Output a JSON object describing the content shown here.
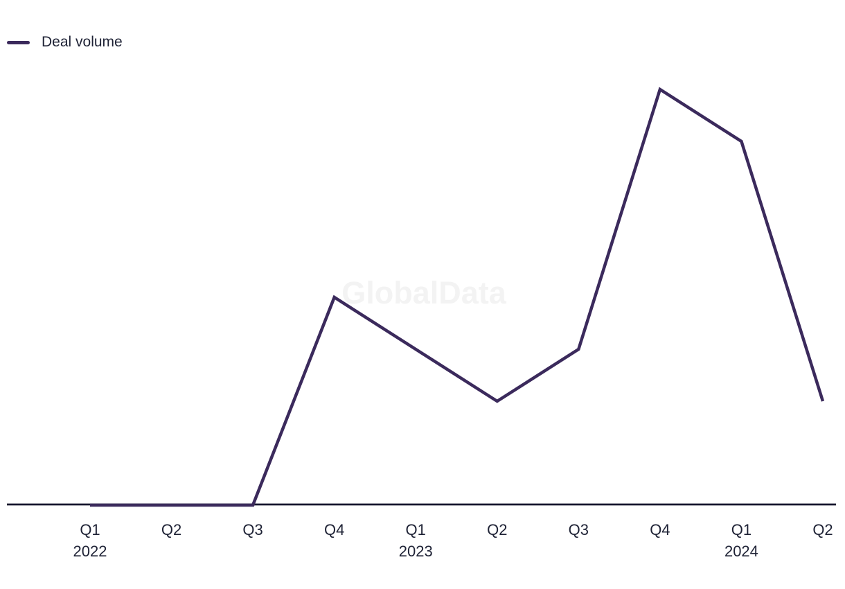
{
  "legend": {
    "label": "Deal volume"
  },
  "watermark": {
    "text": "GlobalData"
  },
  "colors": {
    "series_line": "#3b2a5c",
    "axis_line": "#16162e",
    "tick_label": "#1e2235",
    "watermark": "#f3f3f3",
    "background": "#ffffff"
  },
  "chart_data": {
    "type": "line",
    "title": "",
    "xlabel": "",
    "ylabel": "",
    "ylim": [
      0,
      8
    ],
    "y_axis_visible": false,
    "gridlines": false,
    "legend_position": "top-left",
    "categories": [
      {
        "quarter": "Q1",
        "year": "2022"
      },
      {
        "quarter": "Q2",
        "year": ""
      },
      {
        "quarter": "Q3",
        "year": ""
      },
      {
        "quarter": "Q4",
        "year": ""
      },
      {
        "quarter": "Q1",
        "year": "2023"
      },
      {
        "quarter": "Q2",
        "year": ""
      },
      {
        "quarter": "Q3",
        "year": ""
      },
      {
        "quarter": "Q4",
        "year": ""
      },
      {
        "quarter": "Q1",
        "year": "2024"
      },
      {
        "quarter": "Q2",
        "year": ""
      }
    ],
    "series": [
      {
        "name": "Deal volume",
        "values": [
          0,
          0,
          0,
          4,
          3,
          2,
          3,
          8,
          7,
          2
        ]
      }
    ]
  }
}
